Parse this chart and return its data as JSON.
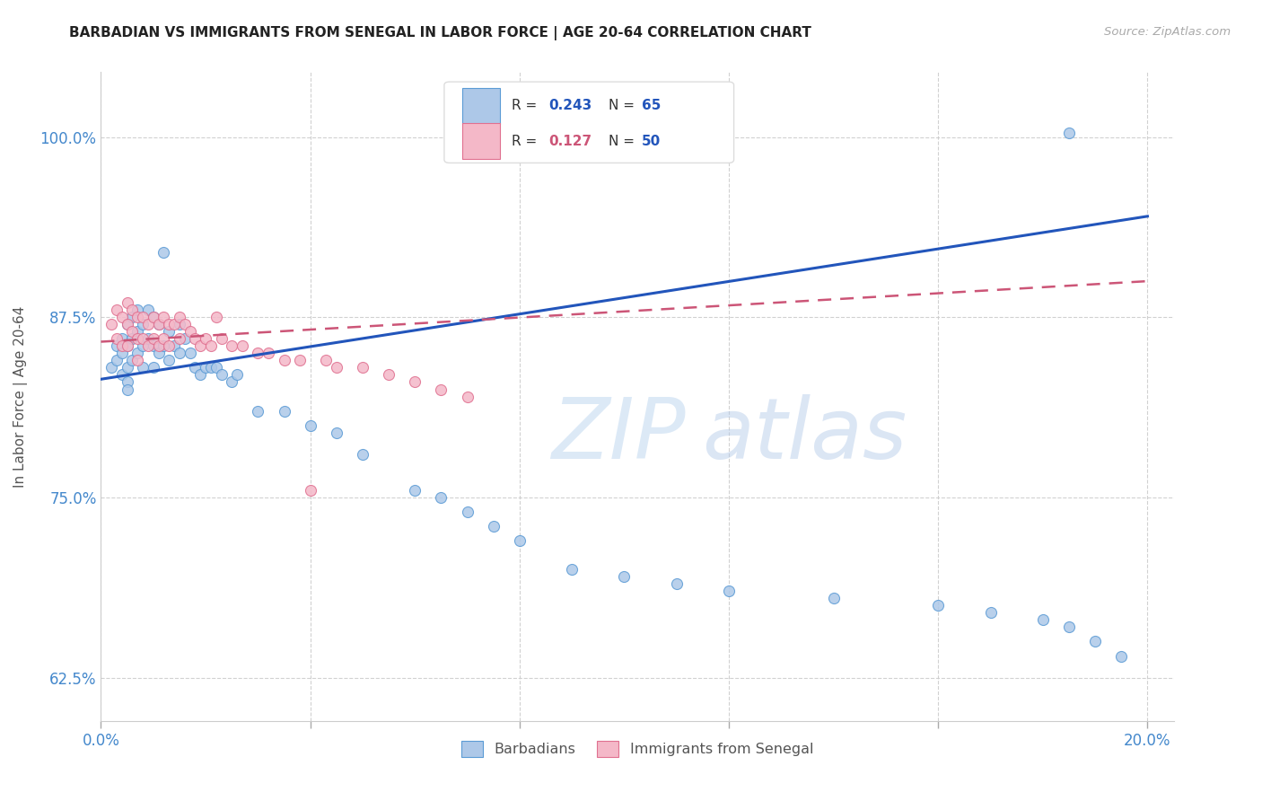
{
  "title": "BARBADIAN VS IMMIGRANTS FROM SENEGAL IN LABOR FORCE | AGE 20-64 CORRELATION CHART",
  "source": "Source: ZipAtlas.com",
  "ylabel": "In Labor Force | Age 20-64",
  "xlim": [
    0.0,
    0.205
  ],
  "ylim": [
    0.595,
    1.045
  ],
  "xtick_positions": [
    0.0,
    0.04,
    0.08,
    0.12,
    0.16,
    0.2
  ],
  "xticklabels": [
    "0.0%",
    "",
    "",
    "",
    "",
    "20.0%"
  ],
  "ytick_positions": [
    0.625,
    0.75,
    0.875,
    1.0
  ],
  "ytick_labels": [
    "62.5%",
    "75.0%",
    "87.5%",
    "100.0%"
  ],
  "color_barbadian_fill": "#adc8e8",
  "color_barbadian_edge": "#5b9bd5",
  "color_senegal_fill": "#f4b8c8",
  "color_senegal_edge": "#e07090",
  "color_line_barbadian": "#2255bb",
  "color_line_senegal": "#cc5577",
  "background_color": "#ffffff",
  "grid_color": "#cccccc",
  "watermark_color": "#d0e4f5",
  "tick_color": "#4488cc",
  "barbadian_x": [
    0.002,
    0.003,
    0.003,
    0.004,
    0.004,
    0.004,
    0.005,
    0.005,
    0.005,
    0.005,
    0.005,
    0.006,
    0.006,
    0.006,
    0.007,
    0.007,
    0.007,
    0.008,
    0.008,
    0.008,
    0.009,
    0.009,
    0.01,
    0.01,
    0.01,
    0.011,
    0.011,
    0.012,
    0.012,
    0.013,
    0.013,
    0.014,
    0.015,
    0.015,
    0.016,
    0.017,
    0.018,
    0.019,
    0.02,
    0.021,
    0.022,
    0.023,
    0.025,
    0.026,
    0.03,
    0.035,
    0.04,
    0.045,
    0.05,
    0.06,
    0.065,
    0.07,
    0.075,
    0.08,
    0.09,
    0.1,
    0.11,
    0.12,
    0.14,
    0.16,
    0.17,
    0.18,
    0.185,
    0.19,
    0.195
  ],
  "barbadian_y": [
    0.84,
    0.855,
    0.845,
    0.86,
    0.85,
    0.835,
    0.87,
    0.855,
    0.84,
    0.83,
    0.825,
    0.875,
    0.86,
    0.845,
    0.88,
    0.865,
    0.85,
    0.87,
    0.855,
    0.84,
    0.88,
    0.86,
    0.875,
    0.855,
    0.84,
    0.87,
    0.85,
    0.92,
    0.855,
    0.865,
    0.845,
    0.855,
    0.87,
    0.85,
    0.86,
    0.85,
    0.84,
    0.835,
    0.84,
    0.84,
    0.84,
    0.835,
    0.83,
    0.835,
    0.81,
    0.81,
    0.8,
    0.795,
    0.78,
    0.755,
    0.75,
    0.74,
    0.73,
    0.72,
    0.7,
    0.695,
    0.69,
    0.685,
    0.68,
    0.675,
    0.67,
    0.665,
    0.66,
    0.65,
    0.64
  ],
  "senegal_x": [
    0.002,
    0.003,
    0.003,
    0.004,
    0.004,
    0.005,
    0.005,
    0.005,
    0.006,
    0.006,
    0.007,
    0.007,
    0.007,
    0.008,
    0.008,
    0.009,
    0.009,
    0.01,
    0.01,
    0.011,
    0.011,
    0.012,
    0.012,
    0.013,
    0.013,
    0.014,
    0.015,
    0.015,
    0.016,
    0.017,
    0.018,
    0.019,
    0.02,
    0.021,
    0.022,
    0.023,
    0.025,
    0.027,
    0.03,
    0.032,
    0.035,
    0.038,
    0.04,
    0.043,
    0.045,
    0.05,
    0.055,
    0.06,
    0.065,
    0.07
  ],
  "senegal_y": [
    0.87,
    0.88,
    0.86,
    0.875,
    0.855,
    0.885,
    0.87,
    0.855,
    0.88,
    0.865,
    0.875,
    0.86,
    0.845,
    0.875,
    0.86,
    0.87,
    0.855,
    0.875,
    0.86,
    0.87,
    0.855,
    0.875,
    0.86,
    0.87,
    0.855,
    0.87,
    0.875,
    0.86,
    0.87,
    0.865,
    0.86,
    0.855,
    0.86,
    0.855,
    0.875,
    0.86,
    0.855,
    0.855,
    0.85,
    0.85,
    0.845,
    0.845,
    0.755,
    0.845,
    0.84,
    0.84,
    0.835,
    0.83,
    0.825,
    0.82
  ],
  "trend_barb_x0": 0.0,
  "trend_barb_y0": 0.832,
  "trend_barb_x1": 0.2,
  "trend_barb_y1": 0.945,
  "trend_sen_x0": 0.0,
  "trend_sen_y0": 0.858,
  "trend_sen_x1": 0.2,
  "trend_sen_y1": 0.9
}
